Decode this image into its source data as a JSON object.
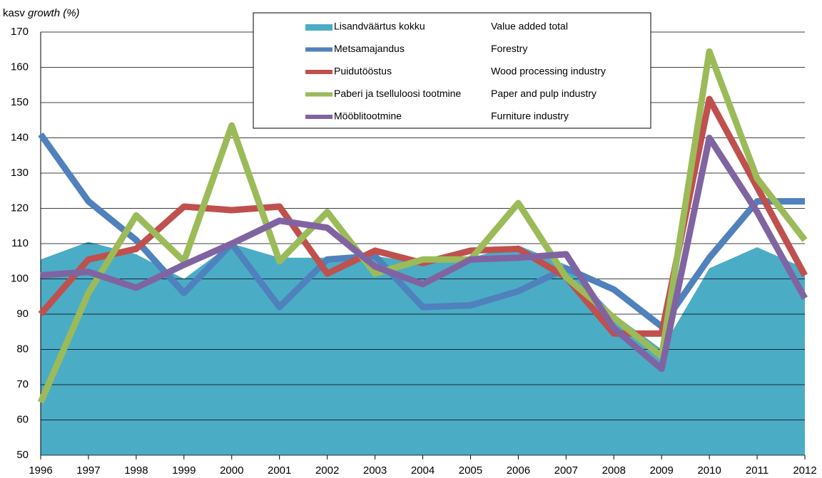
{
  "chart_data": {
    "type": "line",
    "y_label": {
      "text": "kasv",
      "italic": "growth (%)"
    },
    "categories": [
      "1996",
      "1997",
      "1998",
      "1999",
      "2000",
      "2001",
      "2002",
      "2003",
      "2004",
      "2005",
      "2006",
      "2007",
      "2008",
      "2009",
      "2010",
      "2011",
      "2012"
    ],
    "ylim": [
      50,
      170
    ],
    "yticks": [
      50,
      60,
      70,
      80,
      90,
      100,
      110,
      120,
      130,
      140,
      150,
      160,
      170
    ],
    "grid": true,
    "legend": "top",
    "series": [
      {
        "name": "Lisandväärtus kokku",
        "name_en": "Value added total",
        "type": "area",
        "color": "#4bacc6",
        "values": [
          105.5,
          110.5,
          107,
          100,
          110,
          106,
          106,
          106.5,
          104.5,
          106,
          109.5,
          104,
          90,
          80,
          103,
          109,
          103
        ]
      },
      {
        "name": "Metsamajandus",
        "name_en": "Forestry",
        "type": "line",
        "color": "#4f81bd",
        "values": [
          141,
          122,
          111,
          96,
          110,
          92,
          105.5,
          106.5,
          92,
          92.5,
          96.5,
          103,
          97,
          86.5,
          106,
          122,
          122
        ]
      },
      {
        "name": "Puidutööstus",
        "name_en": "Wood processing industry",
        "type": "line",
        "color": "#c0504d",
        "values": [
          90,
          105.5,
          108.5,
          120.5,
          119.5,
          120.5,
          101.5,
          108,
          104.5,
          108,
          108.5,
          100.5,
          84.5,
          84.5,
          151,
          126,
          101
        ]
      },
      {
        "name": "Paberi ja tselluloosi tootmine",
        "name_en": "Paper and pulp industry",
        "type": "line",
        "color": "#9bbb59",
        "values": [
          65,
          96,
          118,
          105,
          143.5,
          105,
          119,
          101.5,
          105.5,
          105.5,
          121.5,
          100.5,
          89,
          78,
          164.5,
          128.5,
          111
        ]
      },
      {
        "name": "Mööblitootmine",
        "name_en": "Furniture industry",
        "type": "line",
        "color": "#8064a2",
        "values": [
          101,
          102,
          97.5,
          104,
          110,
          116.5,
          114.5,
          103.5,
          98.5,
          105.5,
          106,
          107,
          86,
          74.5,
          140,
          119,
          94.5
        ]
      }
    ]
  }
}
